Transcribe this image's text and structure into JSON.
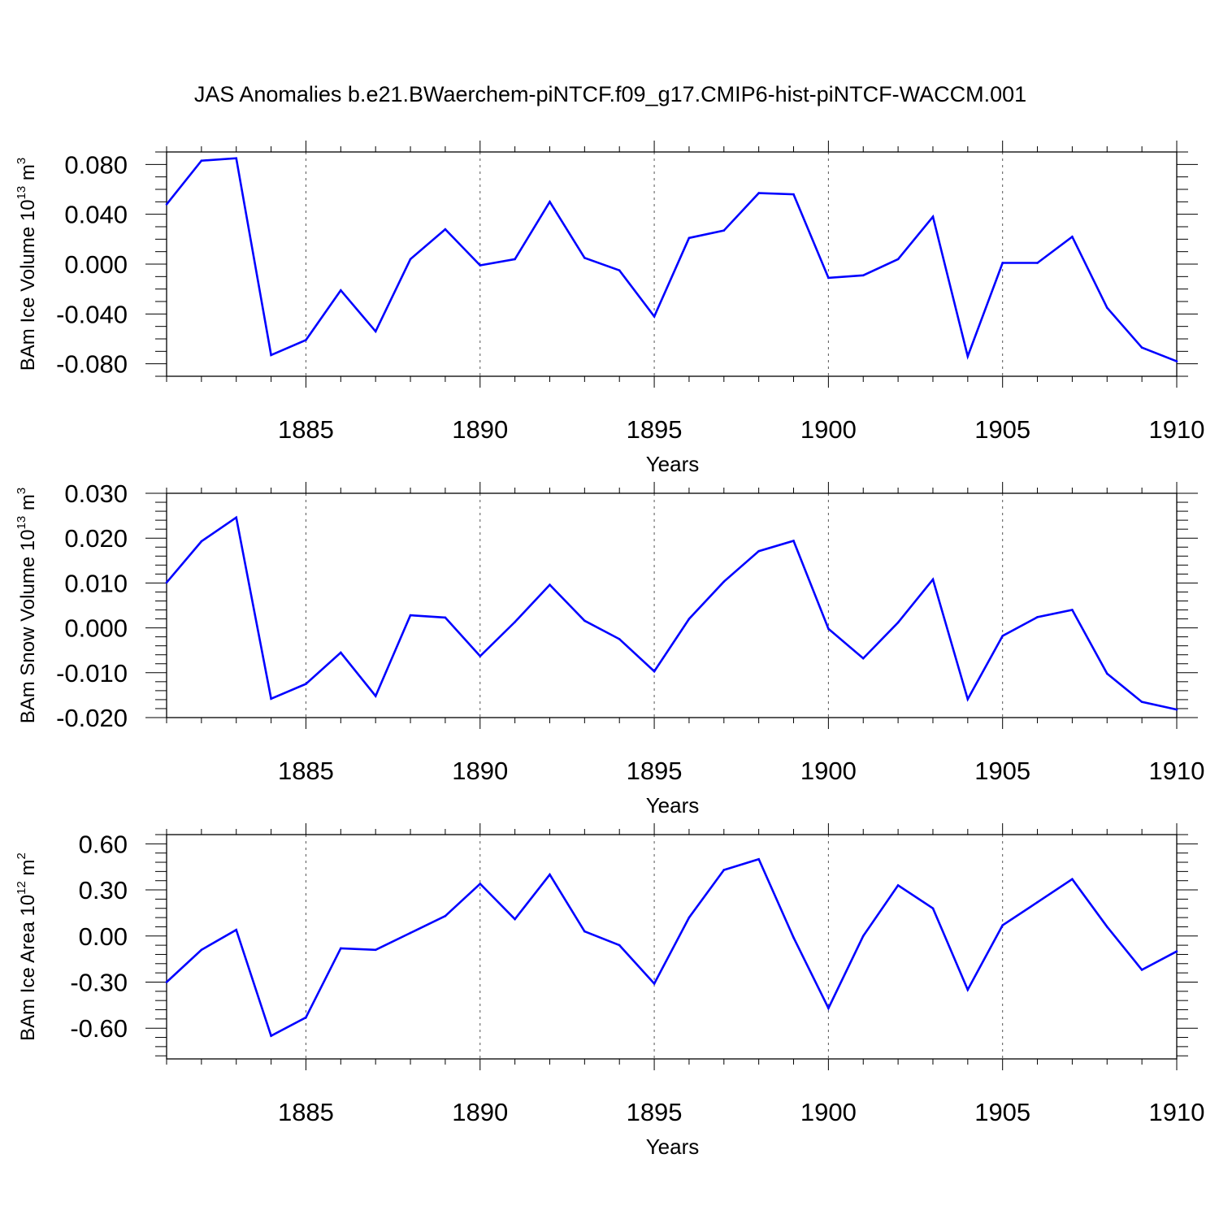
{
  "figure": {
    "title": "JAS Anomalies b.e21.BWaerchem-piNTCF.f09_g17.CMIP6-hist-piNTCF-WACCM.001"
  },
  "chart_data": [
    {
      "type": "line",
      "ylabel": "BAm Ice Volume 10",
      "ylabel_sup": "13",
      "ylabel_unit": "m",
      "ylabel_unit_sup": "3",
      "xlabel": "Years",
      "xlim": [
        1881,
        1910
      ],
      "ylim": [
        -0.09,
        0.09
      ],
      "xticks": [
        "1885",
        "1890",
        "1895",
        "1900",
        "1905",
        "1910"
      ],
      "yticks": [
        "0.080",
        "0.040",
        "0.000",
        "-0.040",
        "-0.080"
      ],
      "ytick_values": [
        0.08,
        0.04,
        0.0,
        -0.04,
        -0.08
      ],
      "yminor_step": 0.01,
      "grid": "dashed vertical at major x ticks",
      "line_color": "#0000ff",
      "x": [
        1881,
        1882,
        1883,
        1884,
        1885,
        1886,
        1887,
        1888,
        1889,
        1890,
        1891,
        1892,
        1893,
        1894,
        1895,
        1896,
        1897,
        1898,
        1899,
        1900,
        1901,
        1902,
        1903,
        1904,
        1905,
        1906,
        1907,
        1908,
        1909,
        1910
      ],
      "values": [
        0.048,
        0.083,
        0.085,
        -0.073,
        -0.061,
        -0.021,
        -0.054,
        0.004,
        0.028,
        -0.001,
        0.004,
        0.05,
        0.005,
        -0.005,
        -0.042,
        0.021,
        0.027,
        0.057,
        0.056,
        -0.011,
        -0.009,
        0.004,
        0.038,
        -0.074,
        0.001,
        0.001,
        0.022,
        -0.035,
        -0.067,
        -0.078
      ]
    },
    {
      "type": "line",
      "ylabel": "BAm Snow Volume 10",
      "ylabel_sup": "13",
      "ylabel_unit": "m",
      "ylabel_unit_sup": "3",
      "xlabel": "Years",
      "xlim": [
        1881,
        1910
      ],
      "ylim": [
        -0.02,
        0.03
      ],
      "xticks": [
        "1885",
        "1890",
        "1895",
        "1900",
        "1905",
        "1910"
      ],
      "yticks": [
        "0.030",
        "0.020",
        "0.010",
        "0.000",
        "-0.010",
        "-0.020"
      ],
      "ytick_values": [
        0.03,
        0.02,
        0.01,
        0.0,
        -0.01,
        -0.02
      ],
      "yminor_step": 0.002,
      "grid": "dashed vertical at major x ticks",
      "line_color": "#0000ff",
      "x": [
        1881,
        1882,
        1883,
        1884,
        1885,
        1886,
        1887,
        1888,
        1889,
        1890,
        1891,
        1892,
        1893,
        1894,
        1895,
        1896,
        1897,
        1898,
        1899,
        1900,
        1901,
        1902,
        1903,
        1904,
        1905,
        1906,
        1907,
        1908,
        1909,
        1910
      ],
      "values": [
        0.0101,
        0.0193,
        0.0246,
        -0.0158,
        -0.0125,
        -0.0055,
        -0.0152,
        0.0028,
        0.0023,
        -0.0063,
        0.0013,
        0.0096,
        0.0016,
        -0.0025,
        -0.0097,
        0.002,
        0.0103,
        0.0171,
        0.0194,
        -0.0002,
        -0.0068,
        0.0012,
        0.0108,
        -0.0159,
        -0.0018,
        0.0024,
        0.004,
        -0.0102,
        -0.0165,
        -0.0182
      ]
    },
    {
      "type": "line",
      "ylabel": "BAm Ice Area 10",
      "ylabel_sup": "12",
      "ylabel_unit": "m",
      "ylabel_unit_sup": "2",
      "xlabel": "Years",
      "xlim": [
        1881,
        1910
      ],
      "ylim": [
        -0.8,
        0.66
      ],
      "xticks": [
        "1885",
        "1890",
        "1895",
        "1900",
        "1905",
        "1910"
      ],
      "yticks": [
        "0.60",
        "0.30",
        "0.00",
        "-0.30",
        "-0.60"
      ],
      "ytick_values": [
        0.6,
        0.3,
        0.0,
        -0.3,
        -0.6
      ],
      "yminor_step": 0.06,
      "grid": "dashed vertical at major x ticks",
      "line_color": "#0000ff",
      "x": [
        1881,
        1882,
        1883,
        1884,
        1885,
        1886,
        1887,
        1888,
        1889,
        1890,
        1891,
        1892,
        1893,
        1894,
        1895,
        1896,
        1897,
        1898,
        1899,
        1900,
        1901,
        1902,
        1903,
        1904,
        1905,
        1906,
        1907,
        1908,
        1909,
        1910
      ],
      "values": [
        -0.3,
        -0.09,
        0.04,
        -0.65,
        -0.53,
        -0.08,
        -0.09,
        0.02,
        0.13,
        0.34,
        0.11,
        0.4,
        0.03,
        -0.06,
        -0.31,
        0.12,
        0.43,
        0.5,
        -0.01,
        -0.47,
        0.0,
        0.33,
        0.18,
        -0.35,
        0.07,
        0.22,
        0.37,
        0.06,
        -0.22,
        -0.1
      ]
    }
  ]
}
